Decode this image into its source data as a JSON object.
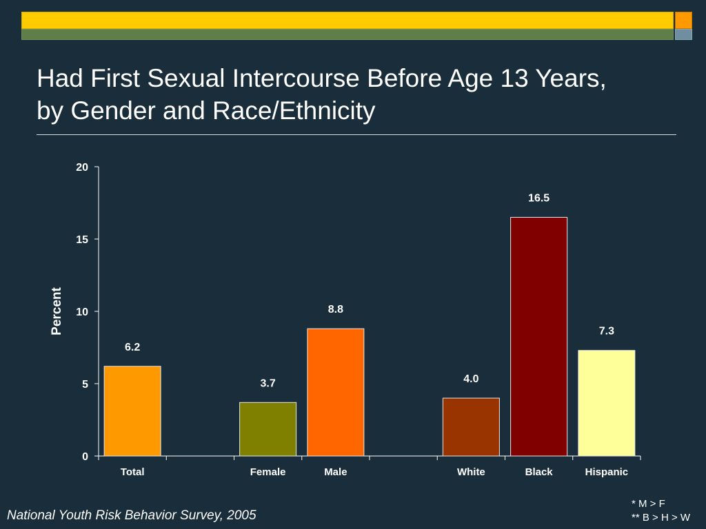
{
  "slide": {
    "title_line1": "Had First Sexual Intercourse Before Age 13 Years,",
    "title_line2": "by Gender and Race/Ethnicity",
    "source": "National Youth Risk Behavior Survey, 2005",
    "note1": "* M > F",
    "note2": "** B > H > W"
  },
  "colors": {
    "background": "#1a2d3a",
    "band_yellow": "#ffcc00",
    "band_green": "#5f7f4a",
    "square_orange": "#ff9900",
    "square_slate": "#6f8fa0"
  },
  "chart_data": {
    "type": "bar",
    "title": "",
    "xlabel": "",
    "ylabel": "Percent",
    "ylim": [
      0,
      20
    ],
    "yticks": [
      0,
      5,
      10,
      15,
      20
    ],
    "grid": false,
    "categories": [
      "Total",
      "",
      "Female",
      "Male",
      "",
      "White",
      "Black",
      "Hispanic"
    ],
    "values": [
      6.2,
      null,
      3.7,
      8.8,
      null,
      4.0,
      16.5,
      7.3
    ],
    "value_labels": [
      "6.2",
      "",
      "3.7",
      "8.8",
      "",
      "4.0",
      "16.5",
      "7.3"
    ],
    "bar_colors": [
      "#ff9900",
      "",
      "#808000",
      "#ff6600",
      "",
      "#993300",
      "#800000",
      "#ffff99"
    ]
  }
}
